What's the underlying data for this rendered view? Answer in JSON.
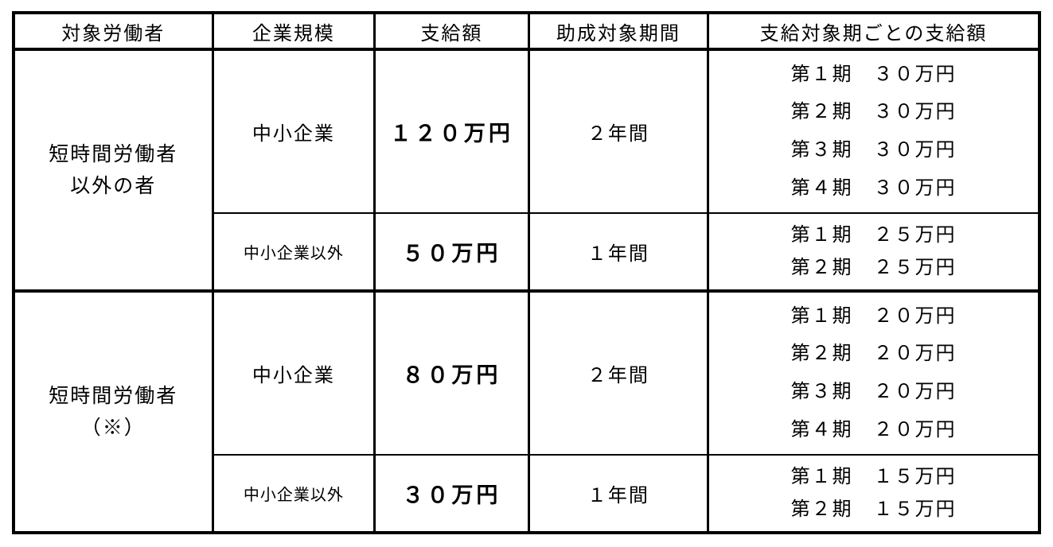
{
  "table": {
    "headers": [
      "対象労働者",
      "企業規模",
      "支給額",
      "助成対象期間",
      "支給対象期ごとの支給額"
    ],
    "groups": [
      {
        "worker_type_lines": [
          "短時間労働者",
          "以外の者"
        ],
        "rows": [
          {
            "company_size": "中小企業",
            "amount": "１２０万円",
            "period": "２年間",
            "installments": [
              "第１期　３０万円",
              "第２期　３０万円",
              "第３期　３０万円",
              "第４期　３０万円"
            ]
          },
          {
            "company_size": "中小企業以外",
            "amount": "５０万円",
            "period": "１年間",
            "installments": [
              "第１期　２５万円",
              "第２期　２５万円"
            ]
          }
        ]
      },
      {
        "worker_type_lines": [
          "短時間労働者",
          "（※）"
        ],
        "rows": [
          {
            "company_size": "中小企業",
            "amount": "８０万円",
            "period": "２年間",
            "installments": [
              "第１期　２０万円",
              "第２期　２０万円",
              "第３期　２０万円",
              "第４期　２０万円"
            ]
          },
          {
            "company_size": "中小企業以外",
            "amount": "３０万円",
            "period": "１年間",
            "installments": [
              "第１期　１５万円",
              "第２期　１５万円"
            ]
          }
        ]
      }
    ],
    "colors": {
      "border": "#000000",
      "text": "#000000",
      "background": "#ffffff"
    }
  }
}
